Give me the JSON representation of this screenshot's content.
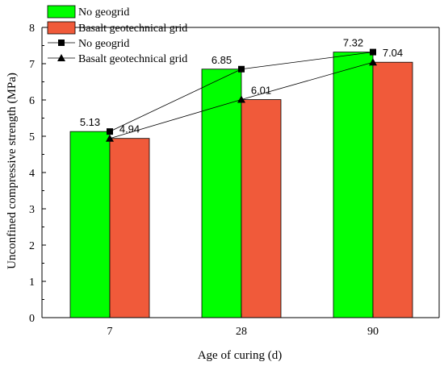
{
  "chart_data": {
    "type": "bar",
    "categories": [
      "7",
      "28",
      "90"
    ],
    "series": [
      {
        "name": "No geogrid",
        "values": [
          5.13,
          6.85,
          7.32
        ],
        "color": "#00ff00"
      },
      {
        "name": "Basalt geotechnical grid",
        "values": [
          4.94,
          6.01,
          7.04
        ],
        "color": "#f05a3a"
      }
    ],
    "line_series": [
      {
        "name": "No geogrid",
        "values": [
          5.13,
          6.85,
          7.32
        ],
        "marker": "square"
      },
      {
        "name": "Basalt geotechnical grid",
        "values": [
          4.94,
          6.01,
          7.04
        ],
        "marker": "triangle"
      }
    ],
    "data_labels": [
      [
        "5.13",
        "6.85",
        "7.32"
      ],
      [
        "4.94",
        "6.01",
        "7.04"
      ]
    ],
    "xlabel": "Age of curing (d)",
    "ylabel": "Unconfined compressive strength (MPa)",
    "ylim": [
      0,
      8
    ],
    "yticks": [
      "0",
      "1",
      "2",
      "3",
      "4",
      "5",
      "6",
      "7",
      "8"
    ],
    "grid": false,
    "legend_position": "top-left"
  }
}
